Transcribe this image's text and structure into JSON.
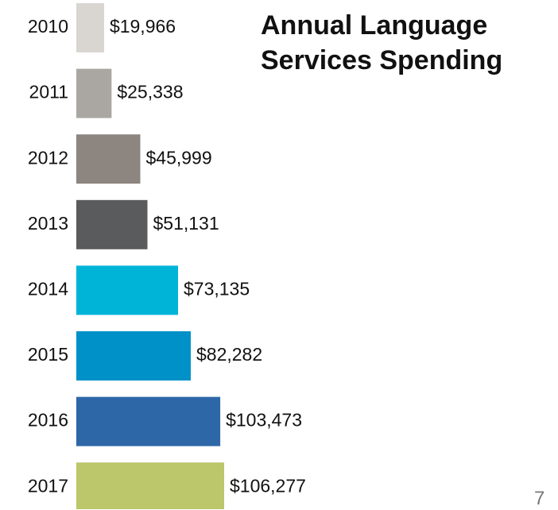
{
  "chart_data": {
    "type": "barh",
    "title": "Annual Language Services Spending",
    "categories": [
      "2010",
      "2011",
      "2012",
      "2013",
      "2014",
      "2015",
      "2016",
      "2017"
    ],
    "values": [
      19966,
      25338,
      45999,
      51131,
      73135,
      82282,
      103473,
      106277
    ],
    "value_labels": [
      "$19,966",
      "$25,338",
      "$45,999",
      "$51,131",
      "$73,135",
      "$82,282",
      "$103,473",
      "$106,277"
    ],
    "colors": [
      "#d9d6d1",
      "#aaa7a3",
      "#8c8580",
      "#5a5b5d",
      "#00b4d8",
      "#0091c8",
      "#2e67a8",
      "#bcc66a"
    ]
  },
  "slide_number": "7"
}
